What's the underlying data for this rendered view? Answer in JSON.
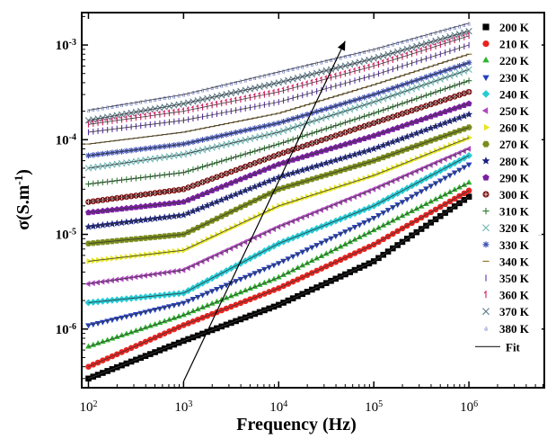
{
  "chart_data": {
    "type": "scatter",
    "xscale": "log",
    "yscale": "log",
    "xlim": [
      85,
      6200000
    ],
    "ylim": [
      2.4e-07,
      0.0022
    ],
    "xlabel": "Frequency (Hz)",
    "ylabel_main": "σ(S.m",
    "ylabel_sup": "-1",
    "ylabel_close": ")",
    "x_ticks": [
      {
        "v": 100,
        "b": "10",
        "e": "2"
      },
      {
        "v": 1000,
        "b": "10",
        "e": "3"
      },
      {
        "v": 10000,
        "b": "10",
        "e": "4"
      },
      {
        "v": 100000,
        "b": "10",
        "e": "5"
      },
      {
        "v": 1000000,
        "b": "10",
        "e": "6"
      }
    ],
    "y_ticks": [
      {
        "v": 1e-06,
        "b": "10",
        "e": "-6"
      },
      {
        "v": 1e-05,
        "b": "10",
        "e": "-5"
      },
      {
        "v": 0.0001,
        "b": "10",
        "e": "-4"
      },
      {
        "v": 0.001,
        "b": "10",
        "e": "-3"
      }
    ],
    "x_points": [
      100,
      1000,
      10000,
      100000,
      1000000
    ],
    "fit_label": "Fit",
    "fit_color": "#3a3a3a",
    "arrow": {
      "from": [
        1000,
        2.8e-07
      ],
      "to": [
        50000,
        0.0011
      ]
    },
    "series": [
      {
        "name": "200 K",
        "marker": "square",
        "color": "#000000",
        "values": [
          3e-07,
          7.5e-07,
          1.8e-06,
          5.2e-06,
          2.5e-05
        ]
      },
      {
        "name": "210 K",
        "marker": "circle",
        "color": "#e8231f",
        "values": [
          4e-07,
          1.1e-06,
          2.7e-06,
          7.8e-06,
          2.9e-05
        ]
      },
      {
        "name": "220 K",
        "marker": "triangle-up",
        "color": "#2db52d",
        "values": [
          6.5e-07,
          1.4e-06,
          3.5e-06,
          1.1e-05,
          3.5e-05
        ]
      },
      {
        "name": "230 K",
        "marker": "triangle-down",
        "color": "#2440c0",
        "values": [
          1.1e-06,
          1.9e-06,
          5e-06,
          1.5e-05,
          5.5e-05
        ]
      },
      {
        "name": "240 K",
        "marker": "diamond",
        "color": "#25cbd6",
        "values": [
          1.9e-06,
          2.4e-06,
          8e-06,
          2e-05,
          6.8e-05
        ]
      },
      {
        "name": "250 K",
        "marker": "triangle-left",
        "color": "#b048c0",
        "values": [
          3e-06,
          4.2e-06,
          1.2e-05,
          3e-05,
          8e-05
        ]
      },
      {
        "name": "260 K",
        "marker": "triangle-right",
        "color": "#e6e61e",
        "values": [
          5.2e-06,
          6.8e-06,
          2e-05,
          4.2e-05,
          0.000105
        ]
      },
      {
        "name": "270 K",
        "marker": "hexagon",
        "color": "#7a8c1c",
        "values": [
          8e-06,
          1e-05,
          3e-05,
          6e-05,
          0.000135
        ]
      },
      {
        "name": "280 K",
        "marker": "star",
        "color": "#1a237e",
        "values": [
          1.2e-05,
          1.6e-05,
          4e-05,
          8e-05,
          0.000185
        ]
      },
      {
        "name": "290 K",
        "marker": "pentagon",
        "color": "#7b1fa2",
        "values": [
          1.7e-05,
          2.2e-05,
          5.5e-05,
          0.00011,
          0.00024
        ]
      },
      {
        "name": "300 K",
        "marker": "circle-cross",
        "color": "#7a1010",
        "values": [
          2.2e-05,
          3e-05,
          7e-05,
          0.00015,
          0.00032
        ]
      },
      {
        "name": "310 K",
        "marker": "plus",
        "color": "#2e7d32",
        "values": [
          3.4e-05,
          4.5e-05,
          9e-05,
          0.00019,
          0.00042
        ]
      },
      {
        "name": "320 K",
        "marker": "x",
        "color": "#6fb7b7",
        "values": [
          5e-05,
          7e-05,
          0.00012,
          0.00025,
          0.00055
        ]
      },
      {
        "name": "330 K",
        "marker": "asterisk",
        "color": "#3f51b5",
        "values": [
          6.8e-05,
          9e-05,
          0.00015,
          0.0003,
          0.00065
        ]
      },
      {
        "name": "340 K",
        "marker": "dash",
        "color": "#8d6e1f",
        "values": [
          9e-05,
          0.00012,
          0.00019,
          0.00038,
          0.0008
        ]
      },
      {
        "name": "350 K",
        "marker": "bar",
        "color": "#5b2fb0",
        "values": [
          0.00012,
          0.00016,
          0.00025,
          0.00048,
          0.001
        ]
      },
      {
        "name": "360 K",
        "marker": "one",
        "color": "#d81b60",
        "values": [
          0.000145,
          0.0002,
          0.00032,
          0.0006,
          0.00125
        ]
      },
      {
        "name": "370 K",
        "marker": "x",
        "color": "#607d8b",
        "values": [
          0.00016,
          0.00024,
          0.0004,
          0.00072,
          0.0014
        ]
      },
      {
        "name": "380 K",
        "marker": "letter-a",
        "color": "#5c6bc0",
        "values": [
          0.000205,
          0.0003,
          0.00052,
          0.0009,
          0.0017
        ]
      }
    ]
  }
}
